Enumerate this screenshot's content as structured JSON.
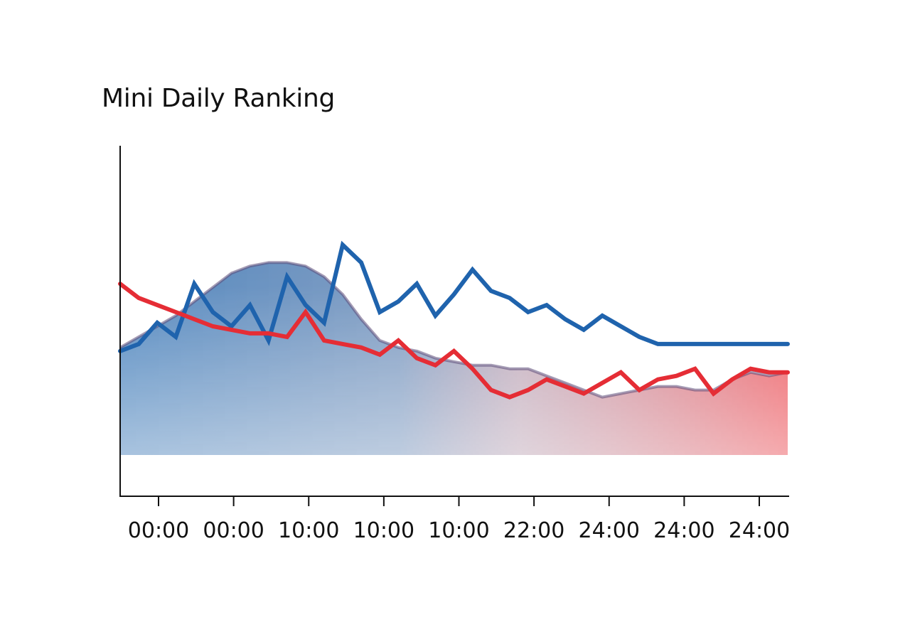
{
  "chart_data": {
    "type": "line",
    "title": "Mini Daily Ranking",
    "xlabel": "",
    "ylabel": "",
    "x_tick_labels": [
      "00:00",
      "00:00",
      "10:00",
      "10:00",
      "10:00",
      "22:00",
      "24:00",
      "24:00",
      "24:00"
    ],
    "ylim": [
      0,
      100
    ],
    "grid": false,
    "legend": "none",
    "series": [
      {
        "style": "area",
        "color_start": "#2e6fb2",
        "color_end": "#e8353d",
        "values": [
          42,
          45,
          48,
          51,
          55,
          59,
          63,
          65,
          66,
          66,
          65,
          62,
          57,
          50,
          44,
          42,
          41,
          39,
          38,
          37,
          37,
          36,
          36,
          34,
          32,
          30,
          28,
          29,
          30,
          31,
          31,
          30,
          30,
          33,
          35,
          34,
          35
        ]
      },
      {
        "style": "line",
        "color": "#1f63ad",
        "values": [
          41,
          43,
          49,
          45,
          60,
          52,
          48,
          54,
          44,
          62,
          54,
          49,
          71,
          66,
          52,
          55,
          60,
          51,
          57,
          64,
          58,
          56,
          52,
          54,
          50,
          47,
          51,
          48,
          45,
          43,
          43,
          43,
          43,
          43,
          43,
          43,
          43
        ]
      },
      {
        "style": "line",
        "color": "#e52d35",
        "values": [
          60,
          56,
          54,
          52,
          50,
          48,
          47,
          46,
          46,
          45,
          52,
          44,
          43,
          42,
          40,
          44,
          39,
          37,
          41,
          36,
          30,
          28,
          30,
          33,
          31,
          29,
          32,
          35,
          30,
          33,
          34,
          36,
          29,
          33,
          36,
          35,
          35
        ]
      }
    ]
  }
}
